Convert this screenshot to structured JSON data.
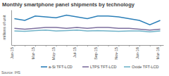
{
  "chart_data": {
    "type": "line",
    "title": "Monthly smartphone panel shipments by technology",
    "y_label": "millions of unit",
    "source": "Source: IHS",
    "categories": [
      "Jan-15",
      null,
      "Mar-15",
      null,
      "May-15",
      null,
      "Jul-15",
      null,
      "Sep-15",
      null,
      "Nov-15",
      null,
      "Jan-16",
      null,
      "Mar-16"
    ],
    "series": [
      {
        "name": "a-Si TFT-LCD",
        "color": "#2b7fb8",
        "values": [
          150,
          140,
          165,
          160,
          155,
          170,
          160,
          150,
          165,
          165,
          160,
          150,
          140,
          115,
          140
        ]
      },
      {
        "name": "LTPS TFT-LCD",
        "color": "#7d6f9e",
        "values": [
          95,
          90,
          95,
          100,
          100,
          95,
          100,
          95,
          100,
          100,
          95,
          95,
          90,
          85,
          90
        ]
      },
      {
        "name": "Oxide TFT-LCD",
        "color": "#6fb3c8",
        "values": [
          80,
          78,
          82,
          85,
          80,
          82,
          85,
          80,
          82,
          80,
          78,
          80,
          80,
          75,
          80
        ]
      }
    ],
    "ylim": [
      0,
      200
    ],
    "tick_labels": "x",
    "grid": false,
    "legend": "bottom"
  }
}
